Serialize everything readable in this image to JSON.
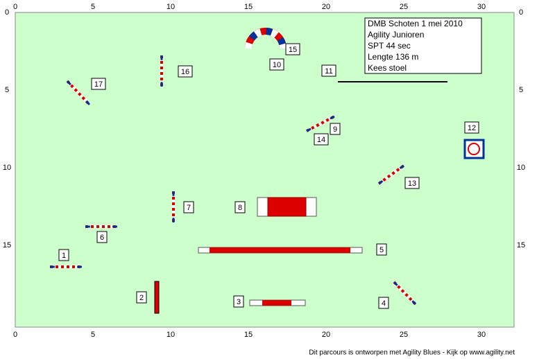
{
  "axes": {
    "x_labels": [
      0,
      5,
      10,
      15,
      20,
      25,
      30
    ],
    "y_labels": [
      0,
      5,
      10,
      15
    ]
  },
  "info": [
    "DMB Schoten 1 mei 2010",
    "Agility Junioren",
    "SPT 44 sec",
    "Lengte 136 m",
    "Kees stoel"
  ],
  "numbers": [
    "1",
    "2",
    "3",
    "4",
    "5",
    "6",
    "7",
    "8",
    "9",
    "10",
    "11",
    "12",
    "13",
    "14",
    "15",
    "16",
    "17"
  ],
  "footer": "Dit parcours is ontworpen met Agility Blues - Kijk op www.agility.net"
}
